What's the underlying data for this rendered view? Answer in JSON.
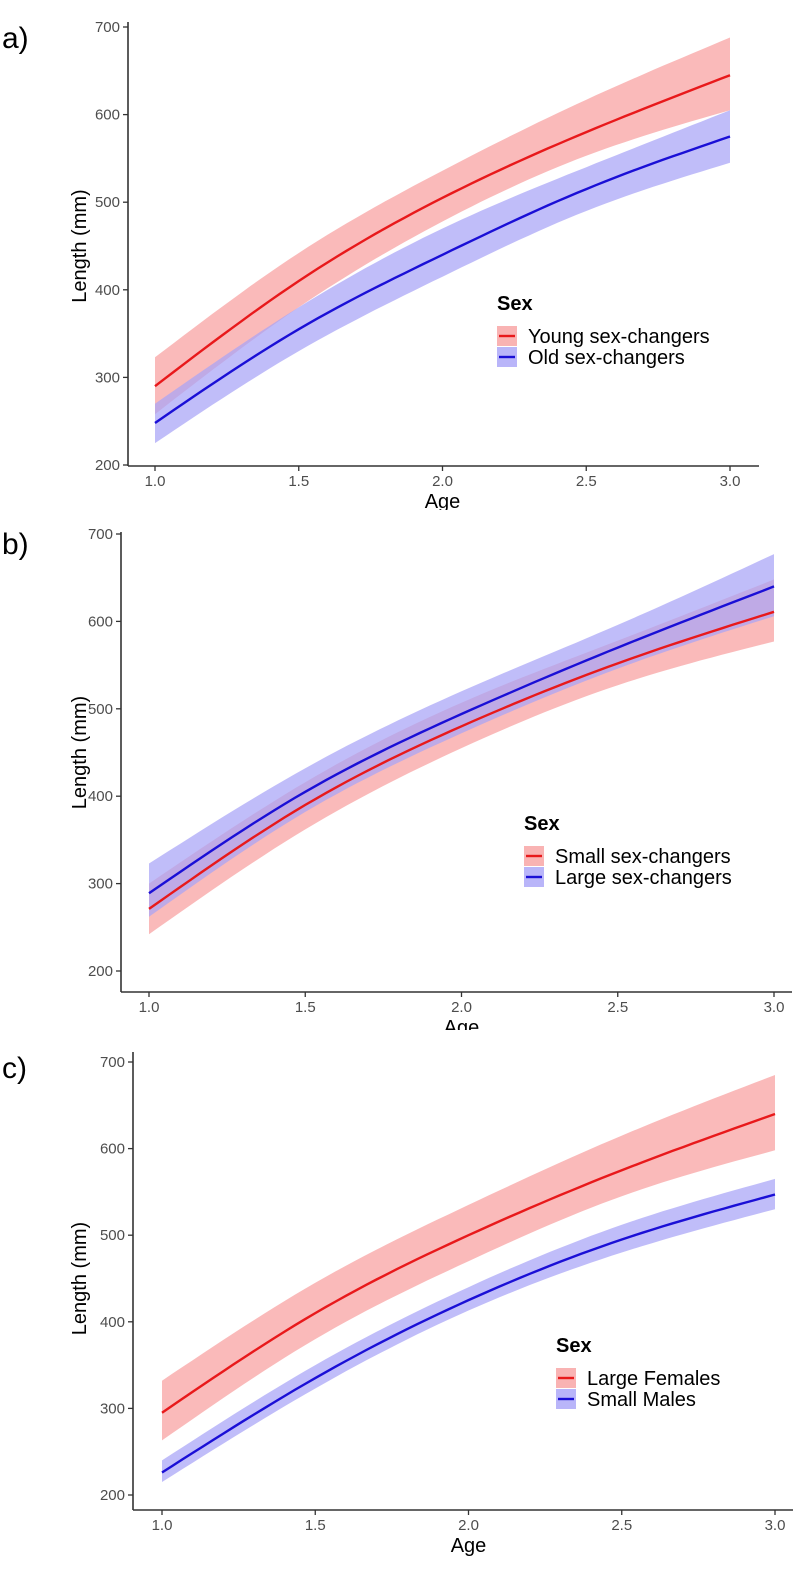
{
  "chart_data": [
    {
      "panel_label": "a)",
      "type": "line",
      "xlabel": "Age",
      "ylabel": "Length (mm)",
      "xlim": [
        1.0,
        3.0
      ],
      "ylim": [
        200,
        700
      ],
      "xticks": [
        "1.0",
        "1.5",
        "2.0",
        "2.5",
        "3.0"
      ],
      "yticks": [
        "200",
        "300",
        "400",
        "500",
        "600",
        "700"
      ],
      "grid": false,
      "legend": {
        "title": "Sex",
        "placement": "center-right"
      },
      "x": [
        1.0,
        1.5,
        2.0,
        2.5,
        3.0
      ],
      "series": [
        {
          "name": "Young sex-changers",
          "color": "#e8191b",
          "band_color": "#f8a0a0",
          "values": [
            290,
            410,
            505,
            580,
            645
          ],
          "lower": [
            258,
            380,
            478,
            553,
            605
          ],
          "upper": [
            323,
            442,
            536,
            617,
            688
          ]
        },
        {
          "name": "Old sex-changers",
          "color": "#1a0fd6",
          "band_color": "#a7a3f7",
          "values": [
            248,
            355,
            440,
            515,
            575
          ],
          "lower": [
            225,
            330,
            415,
            490,
            545
          ],
          "upper": [
            270,
            380,
            470,
            540,
            605
          ]
        }
      ]
    },
    {
      "panel_label": "b)",
      "type": "line",
      "xlabel": "Age",
      "ylabel": "Length (mm)",
      "xlim": [
        1.0,
        3.0
      ],
      "ylim": [
        200,
        700
      ],
      "xticks": [
        "1.0",
        "1.5",
        "2.0",
        "2.5",
        "3.0"
      ],
      "yticks": [
        "200",
        "300",
        "400",
        "500",
        "600",
        "700"
      ],
      "grid": false,
      "legend": {
        "title": "Sex",
        "placement": "center-right"
      },
      "x": [
        1.0,
        1.5,
        2.0,
        2.5,
        3.0
      ],
      "series": [
        {
          "name": "Small sex-changers",
          "color": "#e8191b",
          "band_color": "#f8a0a0",
          "values": [
            271,
            390,
            480,
            552,
            611
          ],
          "lower": [
            242,
            362,
            455,
            527,
            577
          ],
          "upper": [
            300,
            416,
            507,
            578,
            648
          ]
        },
        {
          "name": "Large sex-changers",
          "color": "#1a0fd6",
          "band_color": "#a7a3f7",
          "values": [
            289,
            405,
            494,
            570,
            640
          ],
          "lower": [
            262,
            382,
            472,
            546,
            606
          ],
          "upper": [
            323,
            432,
            520,
            596,
            677
          ]
        }
      ]
    },
    {
      "panel_label": "c)",
      "type": "line",
      "xlabel": "Age",
      "ylabel": "Length (mm)",
      "xlim": [
        1.0,
        3.0
      ],
      "ylim": [
        200,
        700
      ],
      "xticks": [
        "1.0",
        "1.5",
        "2.0",
        "2.5",
        "3.0"
      ],
      "yticks": [
        "200",
        "300",
        "400",
        "500",
        "600",
        "700"
      ],
      "grid": false,
      "legend": {
        "title": "Sex",
        "placement": "center-right"
      },
      "x": [
        1.0,
        1.5,
        2.0,
        2.5,
        3.0
      ],
      "series": [
        {
          "name": "Large Females",
          "color": "#e8191b",
          "band_color": "#f8a0a0",
          "values": [
            295,
            410,
            500,
            575,
            640
          ],
          "lower": [
            263,
            380,
            470,
            545,
            598
          ],
          "upper": [
            332,
            445,
            535,
            615,
            685
          ]
        },
        {
          "name": "Small Males",
          "color": "#1a0fd6",
          "band_color": "#a7a3f7",
          "values": [
            226,
            335,
            425,
            495,
            547
          ],
          "lower": [
            215,
            323,
            413,
            480,
            530
          ],
          "upper": [
            240,
            350,
            440,
            512,
            565
          ]
        }
      ]
    }
  ]
}
